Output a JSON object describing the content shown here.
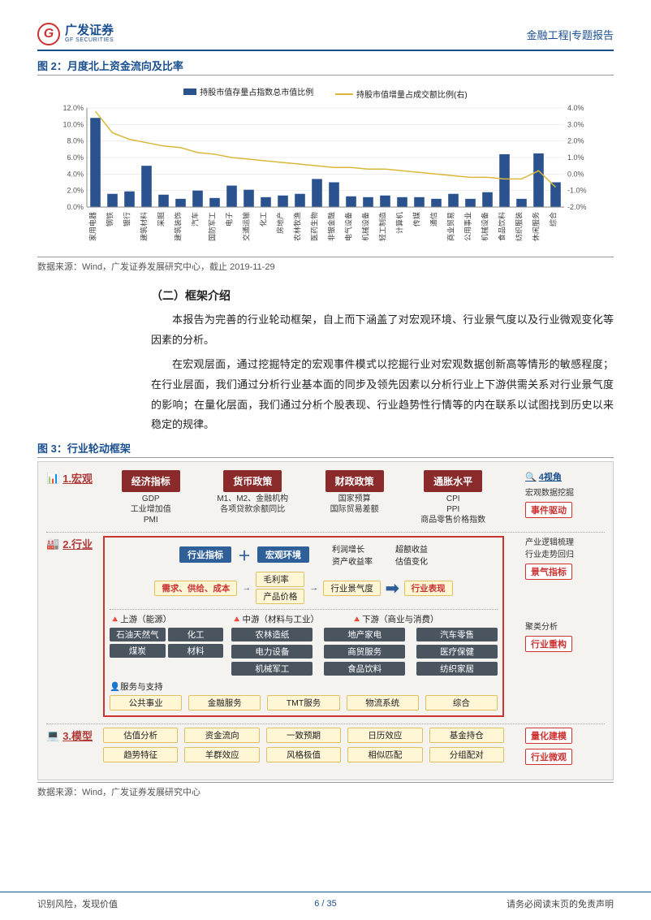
{
  "header": {
    "logo_cn": "广发证券",
    "logo_en": "GF SECURITIES",
    "logo_letter": "G",
    "right": "金融工程|专题报告"
  },
  "fig2": {
    "title": "图 2：月度北上资金流向及比率",
    "legend_bar": "持股市值存量占指数总市值比例",
    "legend_line": "持股市值增量占成交额比例(右)",
    "source": "数据来源：Wind，广发证券发展研究中心，截止 2019-11-29",
    "left_ylabel_step": "2.0%",
    "left_ylim": [
      0,
      12
    ],
    "left_ticks": [
      "0.0%",
      "2.0%",
      "4.0%",
      "6.0%",
      "8.0%",
      "10.0%",
      "12.0%"
    ],
    "right_ylim": [
      -2,
      4
    ],
    "right_ticks": [
      "-2.0%",
      "-1.0%",
      "0.0%",
      "1.0%",
      "2.0%",
      "3.0%",
      "4.0%"
    ],
    "categories": [
      "家用电器",
      "钢铁",
      "银行",
      "建筑材料",
      "采掘",
      "建筑装饰",
      "汽车",
      "国防军工",
      "电子",
      "交通运输",
      "化工",
      "房地产",
      "农林牧渔",
      "医药生物",
      "非银金融",
      "电气设备",
      "机械设备",
      "轻工制造",
      "计算机",
      "传媒",
      "通信",
      "商业贸易",
      "公用事业",
      "机械设备",
      "食品饮料",
      "纺织服装",
      "休闲服务",
      "综合"
    ],
    "bar_values": [
      10.8,
      1.6,
      1.9,
      5.0,
      1.5,
      1.0,
      2.0,
      1.1,
      2.6,
      2.1,
      1.2,
      1.4,
      1.6,
      3.4,
      3.0,
      1.3,
      1.2,
      1.4,
      1.2,
      1.2,
      1.0,
      1.6,
      1.0,
      1.8,
      6.4,
      1.0,
      6.5,
      3.0
    ],
    "line_values": [
      3.8,
      2.5,
      2.1,
      1.9,
      1.7,
      1.6,
      1.3,
      1.2,
      1.0,
      0.9,
      0.8,
      0.7,
      0.6,
      0.5,
      0.4,
      0.4,
      0.3,
      0.3,
      0.2,
      0.1,
      0.0,
      -0.1,
      -0.2,
      -0.2,
      -0.3,
      -0.3,
      0.2,
      -0.8
    ],
    "bar_color": "#2a528f",
    "line_color": "#d9b83a",
    "grid_color": "#dddddd",
    "axis_color": "#888888",
    "label_fontsize": 9
  },
  "body": {
    "section_title": "（二）框架介绍",
    "para1": "本报告为完善的行业轮动框架，自上而下涵盖了对宏观环境、行业景气度以及行业微观变化等因素的分析。",
    "para2": "在宏观层面，通过挖掘特定的宏观事件模式以挖掘行业对宏观数据创新高等情形的敏感程度；在行业层面，我们通过分析行业基本面的同步及领先因素以分析行业上下游供需关系对行业景气度的影响；在量化层面，我们通过分析个股表现、行业趋势性行情等的内在联系以试图找到历史以来稳定的规律。"
  },
  "fig3": {
    "title": "图 3：行业轮动框架",
    "source": "数据来源：Wind，广发证券发展研究中心",
    "row1": {
      "label": "1.宏观",
      "cols": [
        {
          "head": "经济指标",
          "sub": "GDP\n工业增加值\nPMI"
        },
        {
          "head": "货币政策",
          "sub": "M1、M2、金融机构\n各项贷款余额同比"
        },
        {
          "head": "财政政策",
          "sub": "国家预算\n国际贸易差额"
        },
        {
          "head": "通胀水平",
          "sub": "CPI\nPPI\n商品零售价格指数"
        }
      ],
      "right_head": "4视角",
      "right_sub": "宏观数据挖掘",
      "right_tag": "事件驱动"
    },
    "row2": {
      "label": "2.行业",
      "top_boxes": [
        "行业指标",
        "宏观环境"
      ],
      "top_plus": "＋",
      "mid_items_l": "需求、供给、成本",
      "mid_items_r1": "毛利率",
      "mid_items_r2": "产品价格",
      "mid_items_r3": "行业景气度",
      "top_right_txt": "利润增长\n资产收益率",
      "top_right_txt2": "超额收益\n估值变化",
      "perf": "行业表现",
      "right_lines": [
        "产业逻辑梳理",
        "行业走势回归"
      ],
      "right_tag1": "景气指标",
      "stream_labels": [
        "上游（能源）",
        "中游（材料与工业）",
        "下游（商业与消费）"
      ],
      "up": [
        [
          "石油天然气",
          "化工"
        ],
        [
          "煤炭",
          "材料"
        ]
      ],
      "mid": [
        [
          "农林造纸",
          "地产家电",
          "汽车零售"
        ],
        [
          "电力设备",
          "商贸服务",
          "医疗保健"
        ],
        [
          "机械军工",
          "食品饮料",
          "纺织家居"
        ]
      ],
      "serve_label": "服务与支持",
      "serve": [
        "公共事业",
        "金融服务",
        "TMT服务",
        "物流系统",
        "综合"
      ],
      "right_sub2": "聚类分析",
      "right_tag2": "行业重构"
    },
    "row3": {
      "label": "3.模型",
      "items1": [
        "估值分析",
        "资金流向",
        "一致预期",
        "日历效应",
        "基金持仓"
      ],
      "items2": [
        "趋势特征",
        "羊群效应",
        "风格极值",
        "相似匹配",
        "分组配对"
      ],
      "right_tag1": "量化建模",
      "right_tag2": "行业微观"
    }
  },
  "footer": {
    "left": "识别风险，发现价值",
    "right": "请务必阅读末页的免责声明",
    "page_cur": "6",
    "page_total": "35"
  },
  "colors": {
    "brand_blue": "#1a4f8f",
    "dark_red": "#8a2a2a",
    "red": "#c33",
    "blue_box": "#2e5f99",
    "dark_grey": "#4a5560",
    "yellow_bg": "#fff6d6",
    "diagram_bg": "#f5f3ef"
  }
}
